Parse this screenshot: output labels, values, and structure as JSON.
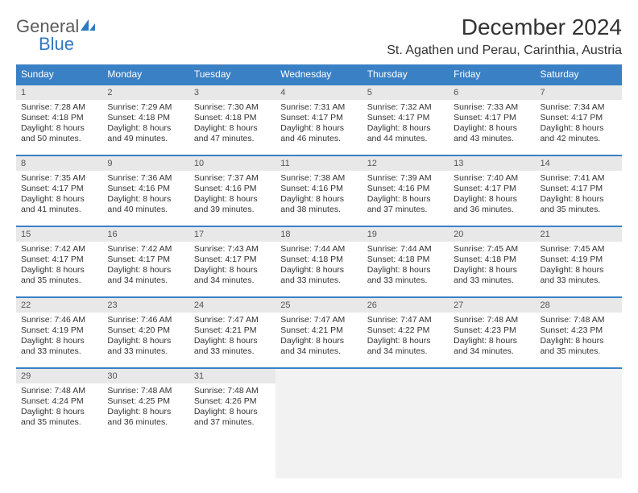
{
  "logo": {
    "word1": "General",
    "word2": "Blue"
  },
  "header": {
    "title": "December 2024",
    "location": "St. Agathen und Perau, Carinthia, Austria"
  },
  "colors": {
    "accent": "#3a80c5",
    "header_text": "#ffffff",
    "daynum_bg": "#e8e8e8",
    "body_text": "#333333",
    "logo_gray": "#5b5b5b",
    "logo_blue": "#2f78c2"
  },
  "weekdays": [
    "Sunday",
    "Monday",
    "Tuesday",
    "Wednesday",
    "Thursday",
    "Friday",
    "Saturday"
  ],
  "weeks": [
    [
      {
        "n": "1",
        "sunrise": "Sunrise: 7:28 AM",
        "sunset": "Sunset: 4:18 PM",
        "day": "Daylight: 8 hours and 50 minutes."
      },
      {
        "n": "2",
        "sunrise": "Sunrise: 7:29 AM",
        "sunset": "Sunset: 4:18 PM",
        "day": "Daylight: 8 hours and 49 minutes."
      },
      {
        "n": "3",
        "sunrise": "Sunrise: 7:30 AM",
        "sunset": "Sunset: 4:18 PM",
        "day": "Daylight: 8 hours and 47 minutes."
      },
      {
        "n": "4",
        "sunrise": "Sunrise: 7:31 AM",
        "sunset": "Sunset: 4:17 PM",
        "day": "Daylight: 8 hours and 46 minutes."
      },
      {
        "n": "5",
        "sunrise": "Sunrise: 7:32 AM",
        "sunset": "Sunset: 4:17 PM",
        "day": "Daylight: 8 hours and 44 minutes."
      },
      {
        "n": "6",
        "sunrise": "Sunrise: 7:33 AM",
        "sunset": "Sunset: 4:17 PM",
        "day": "Daylight: 8 hours and 43 minutes."
      },
      {
        "n": "7",
        "sunrise": "Sunrise: 7:34 AM",
        "sunset": "Sunset: 4:17 PM",
        "day": "Daylight: 8 hours and 42 minutes."
      }
    ],
    [
      {
        "n": "8",
        "sunrise": "Sunrise: 7:35 AM",
        "sunset": "Sunset: 4:17 PM",
        "day": "Daylight: 8 hours and 41 minutes."
      },
      {
        "n": "9",
        "sunrise": "Sunrise: 7:36 AM",
        "sunset": "Sunset: 4:16 PM",
        "day": "Daylight: 8 hours and 40 minutes."
      },
      {
        "n": "10",
        "sunrise": "Sunrise: 7:37 AM",
        "sunset": "Sunset: 4:16 PM",
        "day": "Daylight: 8 hours and 39 minutes."
      },
      {
        "n": "11",
        "sunrise": "Sunrise: 7:38 AM",
        "sunset": "Sunset: 4:16 PM",
        "day": "Daylight: 8 hours and 38 minutes."
      },
      {
        "n": "12",
        "sunrise": "Sunrise: 7:39 AM",
        "sunset": "Sunset: 4:16 PM",
        "day": "Daylight: 8 hours and 37 minutes."
      },
      {
        "n": "13",
        "sunrise": "Sunrise: 7:40 AM",
        "sunset": "Sunset: 4:17 PM",
        "day": "Daylight: 8 hours and 36 minutes."
      },
      {
        "n": "14",
        "sunrise": "Sunrise: 7:41 AM",
        "sunset": "Sunset: 4:17 PM",
        "day": "Daylight: 8 hours and 35 minutes."
      }
    ],
    [
      {
        "n": "15",
        "sunrise": "Sunrise: 7:42 AM",
        "sunset": "Sunset: 4:17 PM",
        "day": "Daylight: 8 hours and 35 minutes."
      },
      {
        "n": "16",
        "sunrise": "Sunrise: 7:42 AM",
        "sunset": "Sunset: 4:17 PM",
        "day": "Daylight: 8 hours and 34 minutes."
      },
      {
        "n": "17",
        "sunrise": "Sunrise: 7:43 AM",
        "sunset": "Sunset: 4:17 PM",
        "day": "Daylight: 8 hours and 34 minutes."
      },
      {
        "n": "18",
        "sunrise": "Sunrise: 7:44 AM",
        "sunset": "Sunset: 4:18 PM",
        "day": "Daylight: 8 hours and 33 minutes."
      },
      {
        "n": "19",
        "sunrise": "Sunrise: 7:44 AM",
        "sunset": "Sunset: 4:18 PM",
        "day": "Daylight: 8 hours and 33 minutes."
      },
      {
        "n": "20",
        "sunrise": "Sunrise: 7:45 AM",
        "sunset": "Sunset: 4:18 PM",
        "day": "Daylight: 8 hours and 33 minutes."
      },
      {
        "n": "21",
        "sunrise": "Sunrise: 7:45 AM",
        "sunset": "Sunset: 4:19 PM",
        "day": "Daylight: 8 hours and 33 minutes."
      }
    ],
    [
      {
        "n": "22",
        "sunrise": "Sunrise: 7:46 AM",
        "sunset": "Sunset: 4:19 PM",
        "day": "Daylight: 8 hours and 33 minutes."
      },
      {
        "n": "23",
        "sunrise": "Sunrise: 7:46 AM",
        "sunset": "Sunset: 4:20 PM",
        "day": "Daylight: 8 hours and 33 minutes."
      },
      {
        "n": "24",
        "sunrise": "Sunrise: 7:47 AM",
        "sunset": "Sunset: 4:21 PM",
        "day": "Daylight: 8 hours and 33 minutes."
      },
      {
        "n": "25",
        "sunrise": "Sunrise: 7:47 AM",
        "sunset": "Sunset: 4:21 PM",
        "day": "Daylight: 8 hours and 34 minutes."
      },
      {
        "n": "26",
        "sunrise": "Sunrise: 7:47 AM",
        "sunset": "Sunset: 4:22 PM",
        "day": "Daylight: 8 hours and 34 minutes."
      },
      {
        "n": "27",
        "sunrise": "Sunrise: 7:48 AM",
        "sunset": "Sunset: 4:23 PM",
        "day": "Daylight: 8 hours and 34 minutes."
      },
      {
        "n": "28",
        "sunrise": "Sunrise: 7:48 AM",
        "sunset": "Sunset: 4:23 PM",
        "day": "Daylight: 8 hours and 35 minutes."
      }
    ],
    [
      {
        "n": "29",
        "sunrise": "Sunrise: 7:48 AM",
        "sunset": "Sunset: 4:24 PM",
        "day": "Daylight: 8 hours and 35 minutes."
      },
      {
        "n": "30",
        "sunrise": "Sunrise: 7:48 AM",
        "sunset": "Sunset: 4:25 PM",
        "day": "Daylight: 8 hours and 36 minutes."
      },
      {
        "n": "31",
        "sunrise": "Sunrise: 7:48 AM",
        "sunset": "Sunset: 4:26 PM",
        "day": "Daylight: 8 hours and 37 minutes."
      },
      null,
      null,
      null,
      null
    ]
  ]
}
